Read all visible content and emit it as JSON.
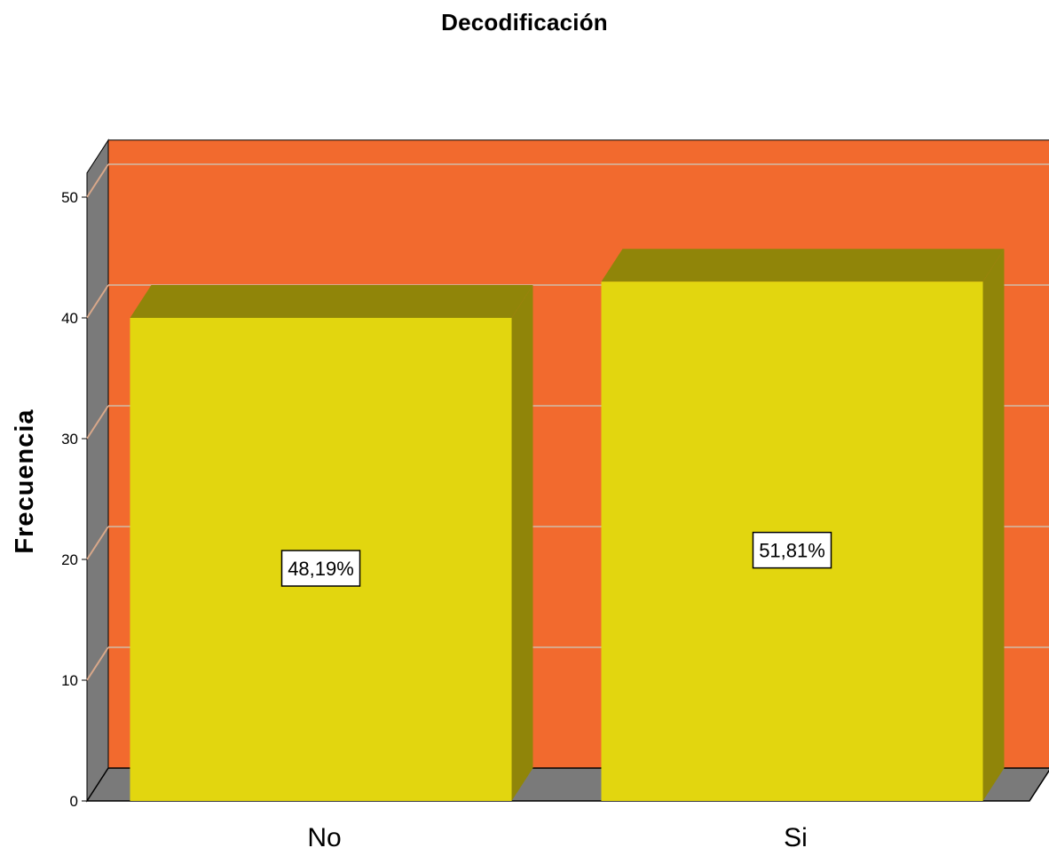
{
  "chart_data": {
    "type": "bar",
    "title": "Decodificación",
    "xlabel": "",
    "ylabel": "Frecuencia",
    "categories": [
      "No",
      "Si"
    ],
    "values": [
      40,
      43
    ],
    "data_labels": [
      "48,19%",
      "51,81%"
    ],
    "ylim": [
      0,
      52
    ],
    "yticks": [
      0,
      10,
      20,
      30,
      40,
      50
    ],
    "grid": true,
    "legend": "none",
    "style": "3d"
  },
  "colors": {
    "back_wall": "#F26A2E",
    "side_wall": "#7A7A7A",
    "floor": "#7A7A7A",
    "bar_front": "#E2D60F",
    "bar_top": "#908509",
    "bar_side": "#908509",
    "gridline": "#D9A88A"
  }
}
